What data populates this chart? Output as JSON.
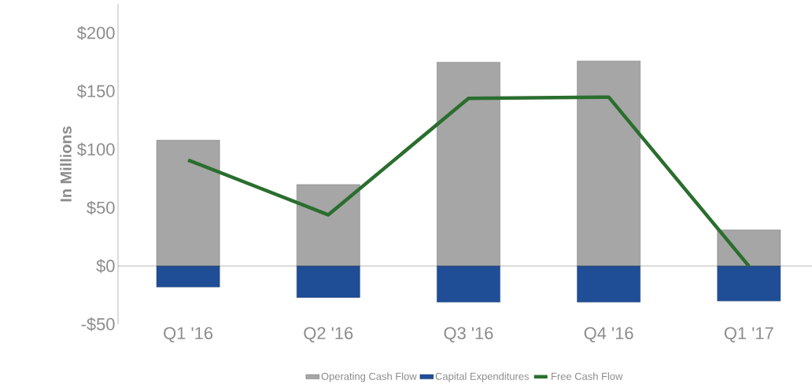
{
  "chart_data": {
    "type": "bar",
    "stacked": true,
    "ylabel": "In Millions",
    "categories": [
      "Q1 '16",
      "Q2 '16",
      "Q3 '16",
      "Q4 '16",
      "Q1 '17"
    ],
    "series": [
      {
        "name": "Operating Cash Flow",
        "color": "#a6a6a6",
        "values": [
          108,
          70,
          175,
          176,
          31
        ]
      },
      {
        "name": "Capital Expenditures",
        "color": "#1f4e96",
        "values": [
          -18,
          -27,
          -31,
          -31,
          -30
        ]
      },
      {
        "name": "Free Cash Flow",
        "type": "line",
        "color": "#2a6e2e",
        "values": [
          91,
          44,
          144,
          145,
          0
        ]
      }
    ],
    "ylim": [
      -50,
      225
    ],
    "yticks": [
      {
        "value": -50,
        "label": "-$50"
      },
      {
        "value": 0,
        "label": "$0"
      },
      {
        "value": 50,
        "label": "$50"
      },
      {
        "value": 100,
        "label": "$100"
      },
      {
        "value": 150,
        "label": "$150"
      },
      {
        "value": 200,
        "label": "$200"
      }
    ],
    "legend": "bottom"
  }
}
